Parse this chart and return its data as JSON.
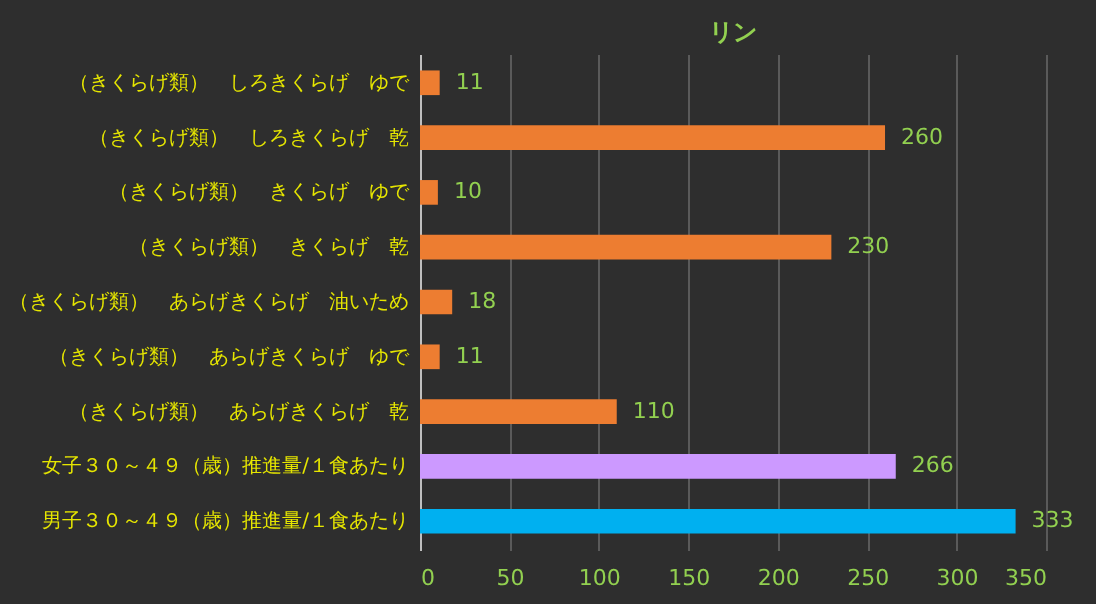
{
  "chart_data": {
    "type": "bar",
    "orientation": "horizontal",
    "title": "リン",
    "categories": [
      "（きくらげ類）　しろきくらげ　ゆで",
      "（きくらげ類）　しろきくらげ　乾",
      "（きくらげ類）　きくらげ　ゆで",
      "（きくらげ類）　きくらげ　乾",
      "（きくらげ類）　あらげきくらげ　油いため",
      "（きくらげ類）　あらげきくらげ　ゆで",
      "（きくらげ類）　あらげきくらげ　乾",
      "女子３０～４９（歳）推進量/１食あたり",
      "男子３０～４９（歳）推進量/１食あたり"
    ],
    "values": [
      11,
      260,
      10,
      230,
      18,
      11,
      110,
      266,
      333
    ],
    "colors": [
      "#ed7d31",
      "#ed7d31",
      "#ed7d31",
      "#ed7d31",
      "#ed7d31",
      "#ed7d31",
      "#ed7d31",
      "#cc99ff",
      "#00b0f0"
    ],
    "xlim": [
      0,
      350
    ],
    "xticks": [
      0,
      50,
      100,
      150,
      200,
      250,
      300,
      350
    ],
    "grid": "x",
    "data_labels": true
  }
}
